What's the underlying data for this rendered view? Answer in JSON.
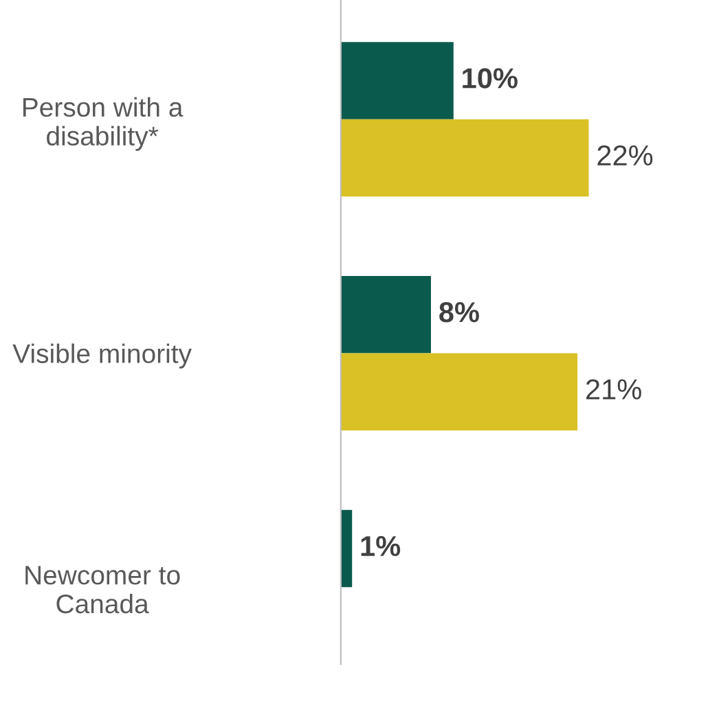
{
  "chart_data": {
    "type": "bar",
    "orientation": "horizontal",
    "categories": [
      "Person with a\ndisability*",
      "Visible minority",
      "Newcomer to\nCanada"
    ],
    "series": [
      {
        "color": "#0b5a4e",
        "values": [
          10,
          8,
          1
        ],
        "value_labels": [
          "10%",
          "8%",
          "1%"
        ]
      },
      {
        "color": "#d9c126",
        "values": [
          22,
          21,
          null
        ],
        "value_labels": [
          "22%",
          "21%",
          null
        ]
      }
    ],
    "grid": false,
    "legend": false
  }
}
